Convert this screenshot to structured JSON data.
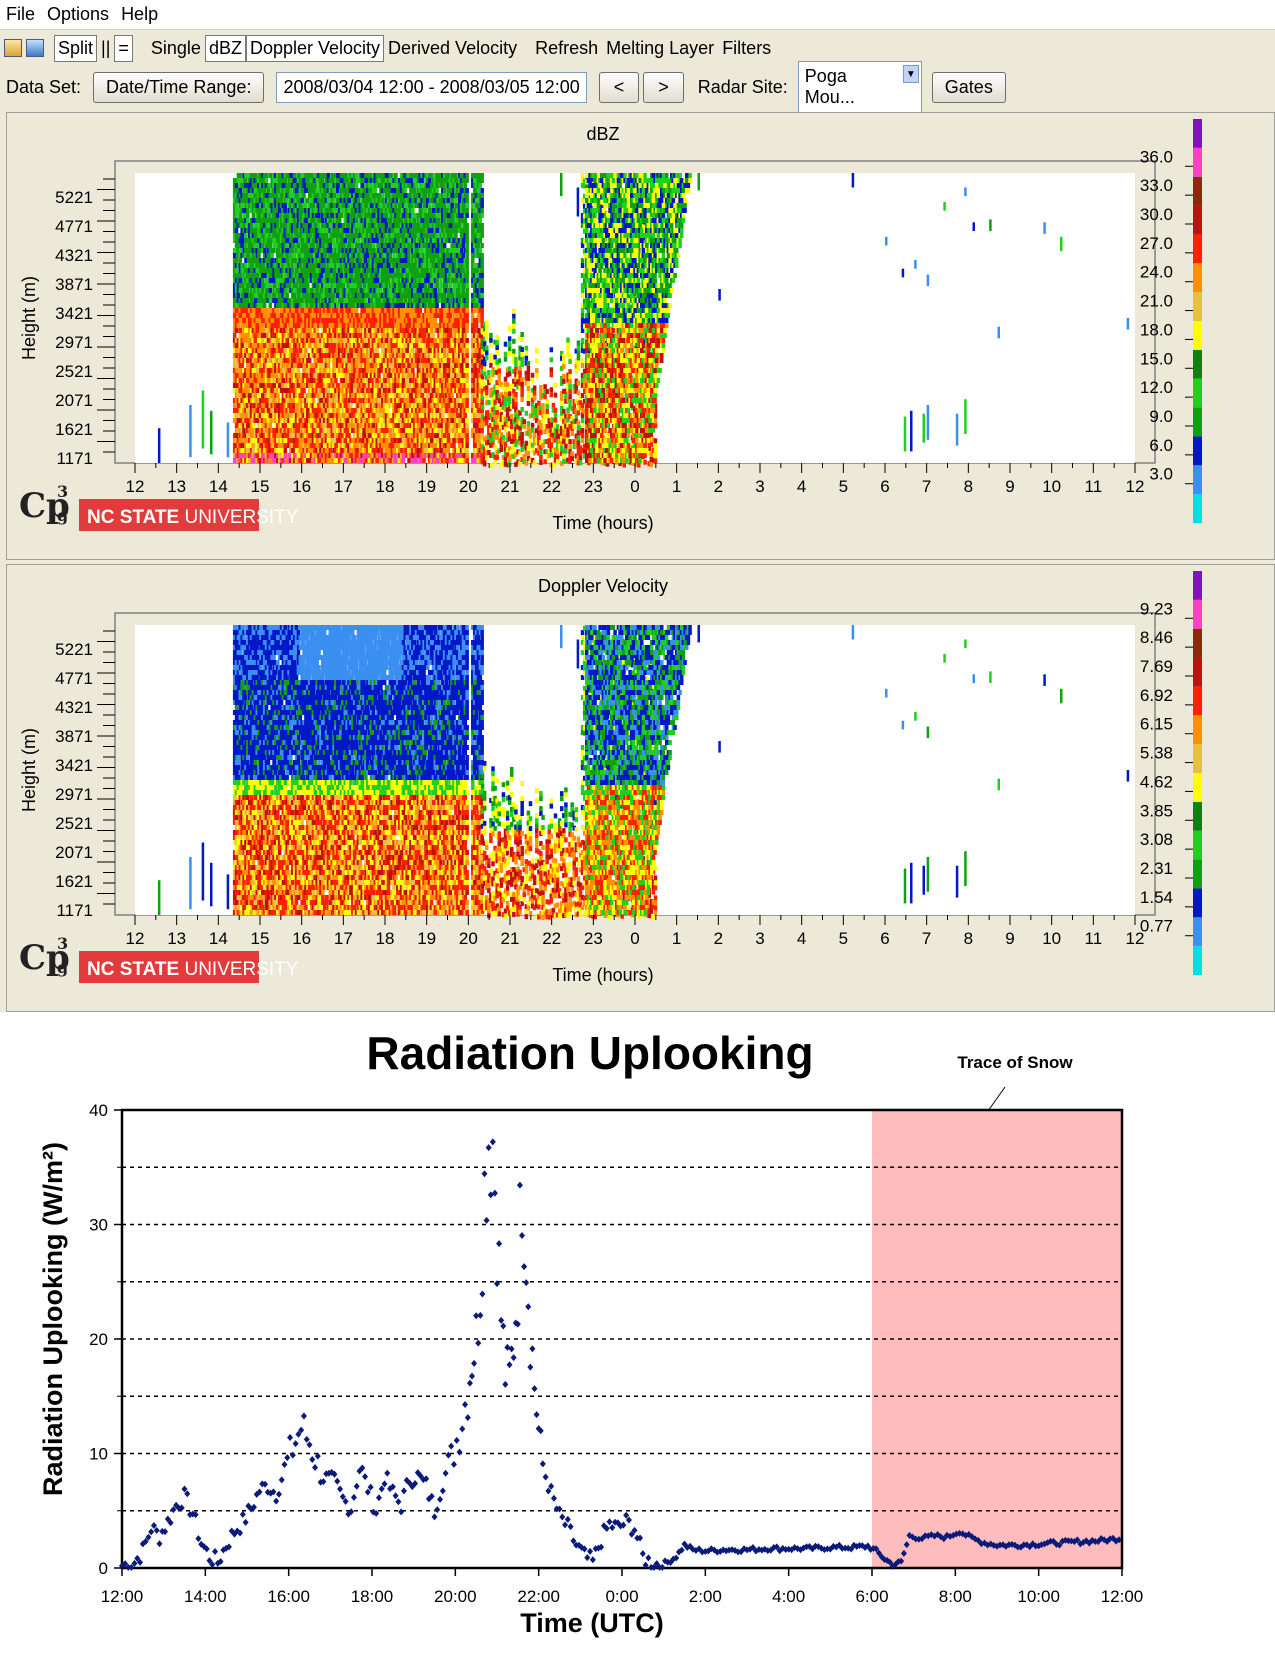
{
  "menu": {
    "items": [
      "File",
      "Options",
      "Help"
    ]
  },
  "toolbar": {
    "split": "Split",
    "split_v": "||",
    "split_h": "=",
    "single": "Single",
    "dbz": "dBZ",
    "doppler": "Doppler Velocity",
    "derived": "Derived Velocity",
    "refresh": "Refresh",
    "melting": "Melting Layer",
    "filters": "Filters"
  },
  "dataset": {
    "label": "Data Set:",
    "range_button": "Date/Time Range:",
    "range_value": "2008/03/04 12:00 - 2008/03/05 12:00",
    "prev": "<",
    "next": ">",
    "site_label": "Radar Site:",
    "site_value": "Poga Mou...",
    "gates": "Gates"
  },
  "panels": [
    {
      "title": "dBZ",
      "ylabel": "Height (m)",
      "xlabel": "Time (hours)",
      "yticks": [
        "5221",
        "4771",
        "4321",
        "3871",
        "3421",
        "2971",
        "2521",
        "2071",
        "1621",
        "1171"
      ],
      "xticks": [
        "12",
        "13",
        "14",
        "15",
        "16",
        "17",
        "18",
        "19",
        "20",
        "21",
        "22",
        "23",
        "0",
        "1",
        "2",
        "3",
        "4",
        "5",
        "6",
        "7",
        "8",
        "9",
        "10",
        "11",
        "12"
      ],
      "scale": [
        "36.0",
        "33.0",
        "30.0",
        "27.0",
        "24.0",
        "21.0",
        "18.0",
        "15.0",
        "12.0",
        "9.0",
        "6.0",
        "3.0"
      ],
      "logo_text": "Cp",
      "logo_sup": "3",
      "logo_sub": "g",
      "university_bold": "NC STATE",
      "university_rest": " UNIVERSITY"
    },
    {
      "title": "Doppler Velocity",
      "ylabel": "Height (m)",
      "xlabel": "Time (hours)",
      "yticks": [
        "5221",
        "4771",
        "4321",
        "3871",
        "3421",
        "2971",
        "2521",
        "2071",
        "1621",
        "1171"
      ],
      "xticks": [
        "12",
        "13",
        "14",
        "15",
        "16",
        "17",
        "18",
        "19",
        "20",
        "21",
        "22",
        "23",
        "0",
        "1",
        "2",
        "3",
        "4",
        "5",
        "6",
        "7",
        "8",
        "9",
        "10",
        "11",
        "12"
      ],
      "scale": [
        "9.23",
        "8.46",
        "7.69",
        "6.92",
        "6.15",
        "5.38",
        "4.62",
        "3.85",
        "3.08",
        "2.31",
        "1.54",
        "0.77"
      ],
      "logo_text": "Cp",
      "logo_sup": "3",
      "logo_sub": "g",
      "university_bold": "NC STATE",
      "university_rest": " UNIVERSITY"
    }
  ],
  "colors": {
    "scale": [
      "#00e0e0",
      "#3a8ff0",
      "#0018c8",
      "#10a010",
      "#20d020",
      "#108010",
      "#ffff00",
      "#e8c040",
      "#ff9000",
      "#ff2000",
      "#c01010",
      "#8b2a0a",
      "#ff40c0",
      "#8010c0"
    ]
  },
  "chart_data": {
    "type": "scatter",
    "title": "Radiation Uplooking",
    "xlabel": "Time (UTC)",
    "ylabel": "Radiation Uplooking (W/m²)",
    "ylim": [
      0,
      40
    ],
    "yticks": [
      "0",
      "10",
      "20",
      "30",
      "40"
    ],
    "xticks": [
      "12:00",
      "14:00",
      "16:00",
      "18:00",
      "20:00",
      "22:00",
      "0:00",
      "2:00",
      "4:00",
      "6:00",
      "8:00",
      "10:00",
      "12:00"
    ],
    "xlim_hours": [
      12,
      36
    ],
    "grid": "dashed horizontal every 5",
    "annotation": "Trace of Snow",
    "shaded_region_hours": [
      30,
      36
    ],
    "series": [
      {
        "color": "#0a1a7a",
        "points": [
          [
            12.0,
            0.2
          ],
          [
            12.3,
            0.5
          ],
          [
            12.5,
            1.5
          ],
          [
            12.7,
            3.5
          ],
          [
            12.9,
            2.8
          ],
          [
            13.1,
            4.0
          ],
          [
            13.3,
            5.5
          ],
          [
            13.5,
            6.2
          ],
          [
            13.7,
            4.8
          ],
          [
            13.9,
            2.2
          ],
          [
            14.1,
            1.0
          ],
          [
            14.3,
            0.5
          ],
          [
            14.5,
            2.0
          ],
          [
            14.7,
            3.2
          ],
          [
            14.9,
            4.0
          ],
          [
            15.1,
            5.2
          ],
          [
            15.3,
            6.8
          ],
          [
            15.5,
            7.2
          ],
          [
            15.7,
            6.5
          ],
          [
            15.9,
            8.5
          ],
          [
            16.1,
            10.5
          ],
          [
            16.3,
            12.3
          ],
          [
            16.5,
            11.0
          ],
          [
            16.7,
            9.0
          ],
          [
            16.9,
            7.8
          ],
          [
            17.1,
            7.5
          ],
          [
            17.3,
            6.0
          ],
          [
            17.5,
            5.2
          ],
          [
            17.7,
            8.8
          ],
          [
            17.9,
            7.0
          ],
          [
            18.1,
            5.0
          ],
          [
            18.3,
            8.0
          ],
          [
            18.5,
            6.5
          ],
          [
            18.7,
            5.5
          ],
          [
            18.9,
            7.8
          ],
          [
            19.1,
            8.0
          ],
          [
            19.3,
            7.2
          ],
          [
            19.5,
            5.0
          ],
          [
            19.7,
            7.5
          ],
          [
            19.9,
            9.5
          ],
          [
            20.1,
            12.0
          ],
          [
            20.3,
            15.5
          ],
          [
            20.4,
            18.5
          ],
          [
            20.5,
            20.0
          ],
          [
            20.6,
            25.0
          ],
          [
            20.7,
            33.0
          ],
          [
            20.8,
            38.0
          ],
          [
            20.9,
            37.5
          ],
          [
            21.0,
            30.0
          ],
          [
            21.1,
            22.0
          ],
          [
            21.2,
            17.0
          ],
          [
            21.3,
            16.5
          ],
          [
            21.4,
            20.0
          ],
          [
            21.5,
            25.0
          ],
          [
            21.6,
            34.0
          ],
          [
            21.7,
            28.0
          ],
          [
            21.8,
            21.0
          ],
          [
            21.9,
            16.0
          ],
          [
            22.0,
            12.0
          ],
          [
            22.1,
            9.0
          ],
          [
            22.3,
            6.5
          ],
          [
            22.5,
            4.5
          ],
          [
            22.7,
            3.5
          ],
          [
            22.9,
            2.0
          ],
          [
            23.1,
            1.0
          ],
          [
            23.3,
            0.5
          ],
          [
            23.5,
            2.5
          ],
          [
            23.7,
            3.8
          ],
          [
            23.9,
            3.5
          ],
          [
            24.1,
            4.0
          ],
          [
            24.3,
            3.5
          ],
          [
            24.5,
            1.0
          ],
          [
            24.7,
            0.4
          ],
          [
            24.9,
            0.3
          ],
          [
            25.1,
            0.5
          ],
          [
            25.3,
            1.0
          ],
          [
            25.5,
            2.0
          ],
          [
            25.7,
            1.6
          ],
          [
            26.0,
            1.5
          ],
          [
            26.5,
            1.6
          ],
          [
            27.0,
            1.6
          ],
          [
            27.5,
            1.7
          ],
          [
            28.0,
            1.7
          ],
          [
            28.5,
            1.7
          ],
          [
            29.0,
            1.8
          ],
          [
            29.5,
            1.8
          ],
          [
            29.9,
            1.9
          ],
          [
            30.1,
            1.5
          ],
          [
            30.3,
            0.8
          ],
          [
            30.5,
            0.3
          ],
          [
            30.7,
            0.5
          ],
          [
            30.9,
            2.8
          ],
          [
            31.2,
            2.6
          ],
          [
            31.5,
            2.8
          ],
          [
            31.8,
            2.7
          ],
          [
            32.1,
            3.2
          ],
          [
            32.4,
            2.6
          ],
          [
            32.7,
            2.2
          ],
          [
            33.0,
            2.0
          ],
          [
            33.5,
            2.0
          ],
          [
            34.0,
            2.1
          ],
          [
            34.5,
            2.2
          ],
          [
            35.0,
            2.3
          ],
          [
            35.5,
            2.4
          ],
          [
            36.0,
            2.6
          ]
        ]
      }
    ]
  }
}
